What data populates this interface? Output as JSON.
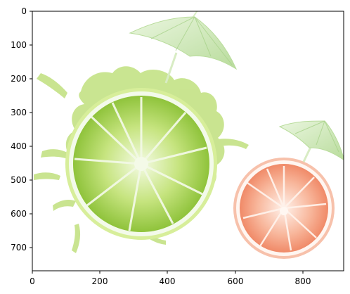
{
  "axes": {
    "x_ticks": [
      "0",
      "200",
      "400",
      "600",
      "800"
    ],
    "y_ticks": [
      "0",
      "100",
      "200",
      "300",
      "400",
      "500",
      "600",
      "700"
    ],
    "x_range": [
      0,
      920
    ],
    "y_range": [
      770,
      0
    ],
    "y_inverted": true
  },
  "image": {
    "subjects": [
      "lime-slice",
      "grapefruit-slice",
      "cocktail-umbrella-lime",
      "cocktail-umbrella-grapefruit",
      "lime-juice-splash"
    ],
    "colors": {
      "lime": "#a6d24a",
      "lime_light": "#d9efae",
      "grapefruit": "#f59c7d",
      "grapefruit_light": "#fde3d5",
      "umbrella": "#c8e7b0",
      "background": "#ffffff"
    }
  }
}
